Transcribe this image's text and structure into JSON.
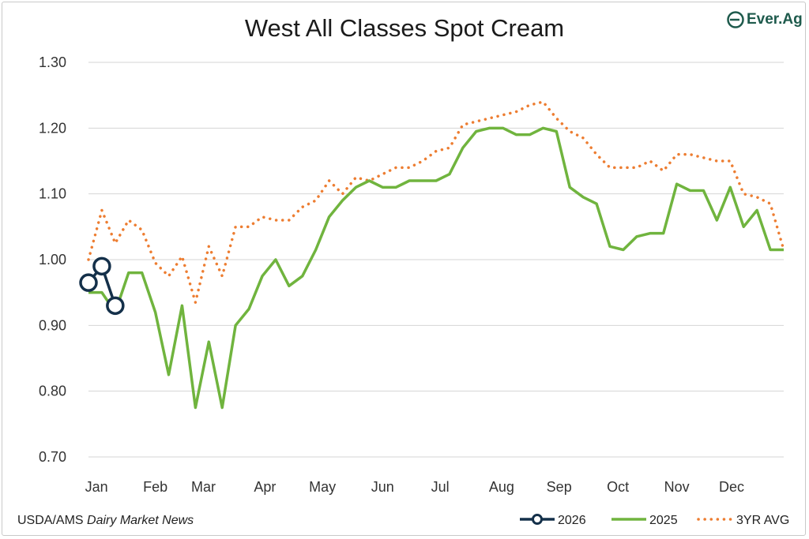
{
  "brand": {
    "name": "Ever.Ag",
    "color": "#1e5a4c"
  },
  "source": {
    "prefix": "USDA/AMS",
    "italic": "Dairy Market News"
  },
  "chart_data": {
    "type": "line",
    "title": "West All Classes Spot Cream",
    "ylim": [
      0.7,
      1.3
    ],
    "yticks": [
      "1.30",
      "1.20",
      "1.10",
      "1.00",
      "0.90",
      "0.80",
      "0.70"
    ],
    "grid": true,
    "legend_position": "bottom-right",
    "xlim": [
      1,
      53
    ],
    "months": [
      {
        "label": "Jan",
        "week": 1.6
      },
      {
        "label": "Feb",
        "week": 6
      },
      {
        "label": "Mar",
        "week": 9.6
      },
      {
        "label": "Apr",
        "week": 14.2
      },
      {
        "label": "May",
        "week": 18.5
      },
      {
        "label": "Jun",
        "week": 23
      },
      {
        "label": "Jul",
        "week": 27.3
      },
      {
        "label": "Aug",
        "week": 31.9
      },
      {
        "label": "Sep",
        "week": 36.2
      },
      {
        "label": "Oct",
        "week": 40.6
      },
      {
        "label": "Nov",
        "week": 45
      },
      {
        "label": "Dec",
        "week": 49.1
      }
    ],
    "series": [
      {
        "name": "2026",
        "color": "#14304a",
        "style": "solid-circle",
        "x": [
          1,
          2,
          3
        ],
        "values": [
          0.965,
          0.99,
          0.93
        ]
      },
      {
        "name": "2025",
        "color": "#70b43e",
        "style": "solid",
        "x": [
          1,
          2,
          3,
          4,
          5,
          6,
          7,
          8,
          9,
          10,
          11,
          12,
          13,
          14,
          15,
          16,
          17,
          18,
          19,
          20,
          21,
          22,
          23,
          24,
          25,
          26,
          27,
          28,
          29,
          30,
          31,
          32,
          33,
          34,
          35,
          36,
          37,
          38,
          39,
          40,
          41,
          42,
          43,
          44,
          45,
          46,
          47,
          48,
          49,
          50,
          51,
          52,
          53
        ],
        "values": [
          0.95,
          0.95,
          0.92,
          0.98,
          0.98,
          0.92,
          0.825,
          0.93,
          0.775,
          0.875,
          0.775,
          0.9,
          0.925,
          0.975,
          1.0,
          0.96,
          0.975,
          1.015,
          1.065,
          1.09,
          1.11,
          1.12,
          1.11,
          1.11,
          1.12,
          1.12,
          1.12,
          1.13,
          1.17,
          1.195,
          1.2,
          1.2,
          1.19,
          1.19,
          1.2,
          1.195,
          1.11,
          1.095,
          1.085,
          1.02,
          1.015,
          1.035,
          1.04,
          1.04,
          1.115,
          1.105,
          1.105,
          1.06,
          1.11,
          1.05,
          1.075,
          1.015,
          1.015
        ]
      },
      {
        "name": "3YR AVG",
        "color": "#ed7d31",
        "style": "dotted",
        "x": [
          1,
          2,
          3,
          4,
          5,
          6,
          7,
          8,
          9,
          10,
          11,
          12,
          13,
          14,
          15,
          16,
          17,
          18,
          19,
          20,
          21,
          22,
          23,
          24,
          25,
          26,
          27,
          28,
          29,
          30,
          31,
          32,
          33,
          34,
          35,
          36,
          37,
          38,
          39,
          40,
          41,
          42,
          43,
          44,
          45,
          46,
          47,
          48,
          49,
          50,
          51,
          52,
          53
        ],
        "values": [
          1.0,
          1.075,
          1.025,
          1.06,
          1.045,
          0.995,
          0.975,
          1.005,
          0.935,
          1.02,
          0.975,
          1.05,
          1.05,
          1.065,
          1.06,
          1.06,
          1.08,
          1.09,
          1.12,
          1.1,
          1.125,
          1.12,
          1.13,
          1.14,
          1.14,
          1.15,
          1.165,
          1.17,
          1.205,
          1.21,
          1.215,
          1.22,
          1.225,
          1.235,
          1.24,
          1.215,
          1.195,
          1.185,
          1.16,
          1.14,
          1.14,
          1.14,
          1.15,
          1.135,
          1.16,
          1.16,
          1.155,
          1.15,
          1.15,
          1.1,
          1.095,
          1.085,
          1.015
        ]
      }
    ]
  }
}
